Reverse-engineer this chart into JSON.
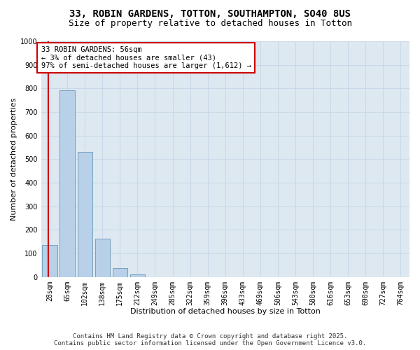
{
  "title_line1": "33, ROBIN GARDENS, TOTTON, SOUTHAMPTON, SO40 8US",
  "title_line2": "Size of property relative to detached houses in Totton",
  "bar_categories": [
    "28sqm",
    "65sqm",
    "102sqm",
    "138sqm",
    "175sqm",
    "212sqm",
    "249sqm",
    "285sqm",
    "322sqm",
    "359sqm",
    "396sqm",
    "433sqm",
    "469sqm",
    "506sqm",
    "543sqm",
    "580sqm",
    "616sqm",
    "653sqm",
    "690sqm",
    "727sqm",
    "764sqm"
  ],
  "bar_values": [
    135,
    793,
    530,
    162,
    37,
    12,
    0,
    0,
    0,
    0,
    0,
    0,
    0,
    0,
    0,
    0,
    0,
    0,
    0,
    0,
    0
  ],
  "bar_color": "#b8d0e8",
  "bar_edge_color": "#6699bb",
  "xlabel": "Distribution of detached houses by size in Totton",
  "ylabel": "Number of detached properties",
  "ylim": [
    0,
    1000
  ],
  "yticks": [
    0,
    100,
    200,
    300,
    400,
    500,
    600,
    700,
    800,
    900,
    1000
  ],
  "annotation_title": "33 ROBIN GARDENS: 56sqm",
  "annotation_line2": "← 3% of detached houses are smaller (43)",
  "annotation_line3": "97% of semi-detached houses are larger (1,612) →",
  "annotation_box_color": "#ffffff",
  "annotation_box_edge_color": "#cc0000",
  "vline_color": "#cc0000",
  "vline_x": 0.5,
  "grid_color": "#c8d8e8",
  "background_color": "#dde8f0",
  "footer_line1": "Contains HM Land Registry data © Crown copyright and database right 2025.",
  "footer_line2": "Contains public sector information licensed under the Open Government Licence v3.0.",
  "title_fontsize": 10,
  "subtitle_fontsize": 9,
  "axis_label_fontsize": 8,
  "tick_fontsize": 7,
  "annotation_fontsize": 7.5,
  "footer_fontsize": 6.5
}
